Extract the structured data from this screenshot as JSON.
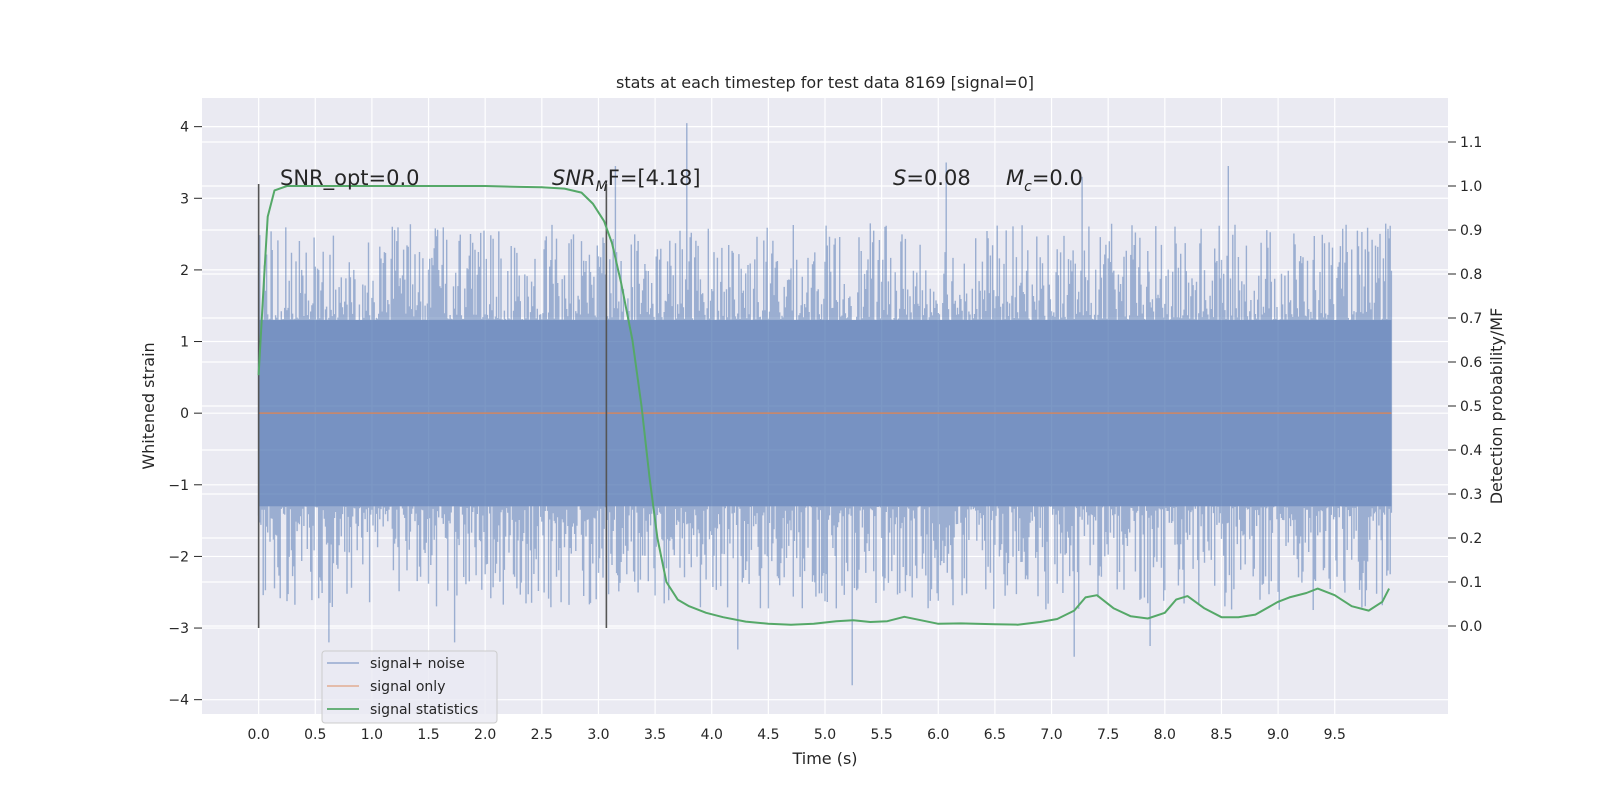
{
  "colors": {
    "background": "#eaeaf2",
    "grid": "#ffffff",
    "signal_noise": "#4c72b0",
    "signal_only": "#dd8452",
    "signal_statistics": "#55a868",
    "marker_line": "#555555"
  },
  "chart_data": {
    "type": "line",
    "title": "stats at each timestep for test data 8169 [signal=0]",
    "xlabel": "Time (s)",
    "ylabel": "Whitened strain",
    "ylabel_right": "Detection probability/MF",
    "xlim": [
      -0.5,
      10.5
    ],
    "ylim": [
      -4.2,
      4.4
    ],
    "ylim_right": [
      -0.2,
      1.2
    ],
    "x_ticks": [
      "0.0",
      "0.5",
      "1.0",
      "1.5",
      "2.0",
      "2.5",
      "3.0",
      "3.5",
      "4.0",
      "4.5",
      "5.0",
      "5.5",
      "6.0",
      "6.5",
      "7.0",
      "7.5",
      "8.0",
      "8.5",
      "9.0",
      "9.5"
    ],
    "y_ticks": [
      "−4",
      "−3",
      "−2",
      "−1",
      "0",
      "1",
      "2",
      "3",
      "4"
    ],
    "y_ticks_right": [
      "0.0",
      "0.1",
      "0.2",
      "0.3",
      "0.4",
      "0.5",
      "0.6",
      "0.7",
      "0.8",
      "0.9",
      "1.0",
      "1.1"
    ],
    "grid": true,
    "legend_position": "lower-left",
    "vertical_markers": [
      0.0,
      3.07
    ],
    "marker_range": [
      -3.0,
      3.2
    ],
    "annotations": {
      "snr_opt": "SNR_opt=0.0",
      "snr_mf_main": "SNR",
      "snr_mf_sub": "M",
      "snr_mf_rest": "F=[4.18]",
      "s_main": "S",
      "s_rest": "=0.08",
      "mc_main": "M",
      "mc_sub": "c",
      "mc_rest": "=0.0"
    },
    "series": [
      {
        "name": "signal+ noise",
        "style": "noise band",
        "x_range": [
          0.0,
          10.0
        ],
        "band_core": [
          -1.3,
          1.3
        ],
        "spike_extent": [
          -3.8,
          4.05
        ],
        "notable_spikes": [
          [
            3.78,
            4.05
          ],
          [
            5.24,
            -3.8
          ],
          [
            0.62,
            -3.2
          ],
          [
            1.73,
            -3.2
          ],
          [
            4.23,
            -3.3
          ],
          [
            7.2,
            -3.4
          ],
          [
            7.87,
            -3.25
          ],
          [
            6.07,
            3.5
          ],
          [
            3.15,
            3.45
          ],
          [
            8.56,
            3.45
          ],
          [
            7.27,
            3.3
          ]
        ]
      },
      {
        "name": "signal only",
        "x": [
          0.0,
          10.0
        ],
        "y": [
          0.0,
          0.0
        ]
      },
      {
        "name": "signal statistics",
        "axis": "right",
        "x": [
          0.0,
          0.05,
          0.08,
          0.14,
          0.25,
          0.5,
          1.0,
          1.5,
          2.0,
          2.3,
          2.5,
          2.7,
          2.85,
          2.95,
          3.05,
          3.12,
          3.2,
          3.3,
          3.38,
          3.45,
          3.52,
          3.6,
          3.7,
          3.8,
          3.95,
          4.1,
          4.3,
          4.5,
          4.7,
          4.9,
          5.1,
          5.25,
          5.4,
          5.55,
          5.7,
          5.85,
          6.0,
          6.2,
          6.5,
          6.7,
          6.9,
          7.05,
          7.2,
          7.3,
          7.4,
          7.55,
          7.7,
          7.85,
          8.0,
          8.1,
          8.2,
          8.35,
          8.5,
          8.65,
          8.8,
          9.0,
          9.1,
          9.25,
          9.35,
          9.5,
          9.65,
          9.8,
          9.92,
          9.98
        ],
        "y": [
          0.57,
          0.8,
          0.93,
          0.99,
          1.0,
          1.0,
          1.0,
          1.0,
          1.0,
          0.998,
          0.997,
          0.994,
          0.985,
          0.96,
          0.92,
          0.87,
          0.78,
          0.65,
          0.5,
          0.34,
          0.2,
          0.1,
          0.06,
          0.045,
          0.03,
          0.02,
          0.01,
          0.005,
          0.003,
          0.005,
          0.011,
          0.013,
          0.009,
          0.011,
          0.021,
          0.013,
          0.005,
          0.006,
          0.004,
          0.003,
          0.009,
          0.016,
          0.035,
          0.065,
          0.07,
          0.04,
          0.022,
          0.017,
          0.03,
          0.06,
          0.068,
          0.04,
          0.02,
          0.02,
          0.026,
          0.055,
          0.065,
          0.075,
          0.085,
          0.07,
          0.045,
          0.035,
          0.055,
          0.085
        ]
      }
    ]
  }
}
